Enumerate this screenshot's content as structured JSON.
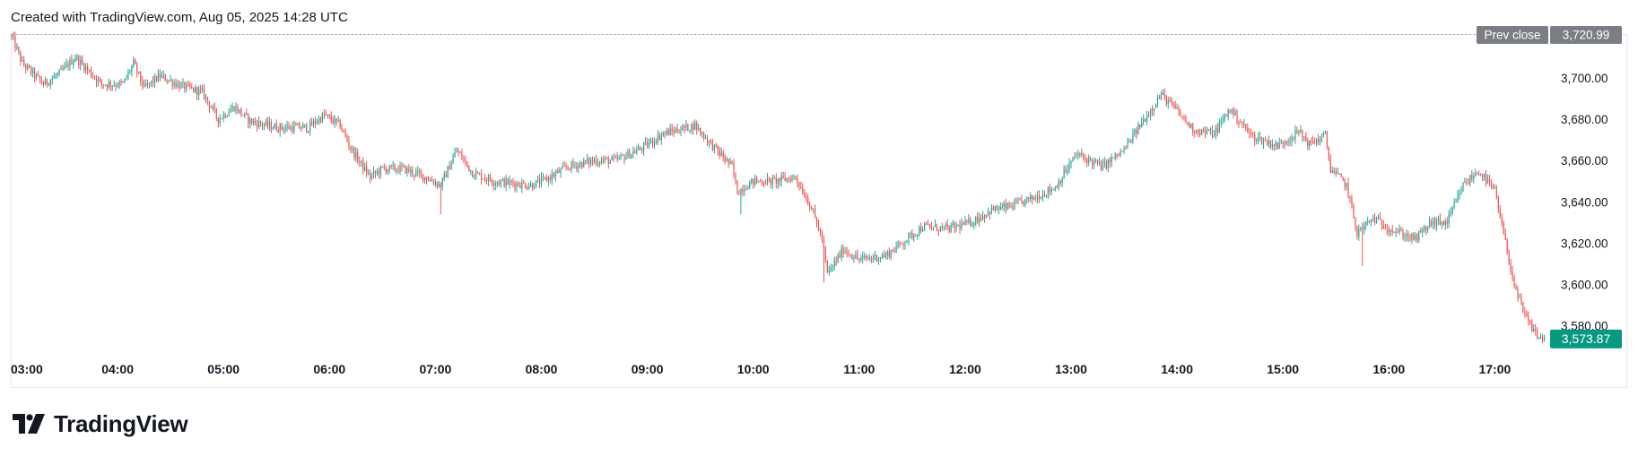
{
  "header": {
    "attribution": "Created with TradingView.com, Aug 05, 2025 14:28 UTC"
  },
  "logo": {
    "text": "TradingView",
    "icon": "tradingview-logo-icon"
  },
  "colors": {
    "up": "#26a69a",
    "down": "#ef5350",
    "text": "#131722",
    "prev_close_badge": "#7b7e85",
    "last_price_badge": "#089981",
    "dotted_line": "#9598a1"
  },
  "chart_data": {
    "type": "candlestick",
    "y_ticks": [
      "3,700.00",
      "3,680.00",
      "3,660.00",
      "3,640.00",
      "3,620.00",
      "3,600.00",
      "3,580.00"
    ],
    "y_tick_values": [
      3700,
      3680,
      3660,
      3640,
      3620,
      3600,
      3580
    ],
    "ylim": [
      3566,
      3722.5
    ],
    "x_ticks": [
      "03:00",
      "04:00",
      "05:00",
      "06:00",
      "07:00",
      "08:00",
      "09:00",
      "10:00",
      "11:00",
      "12:00",
      "13:00",
      "14:00",
      "15:00",
      "16:00",
      "17:00"
    ],
    "x_tick_hours": [
      3,
      4,
      5,
      6,
      7,
      8,
      9,
      10,
      11,
      12,
      13,
      14,
      15,
      16,
      17
    ],
    "x_range_hours": [
      3.0,
      17.48
    ],
    "prev_close": {
      "label": "Prev close",
      "value_text": "3,720.99",
      "value": 3720.99
    },
    "last_price": {
      "value_text": "3,573.87",
      "value": 3573.87
    },
    "price_path": [
      [
        3.0,
        3720
      ],
      [
        3.1,
        3707
      ],
      [
        3.3,
        3697
      ],
      [
        3.45,
        3702
      ],
      [
        3.6,
        3710
      ],
      [
        3.85,
        3697
      ],
      [
        4.05,
        3697
      ],
      [
        4.15,
        3707
      ],
      [
        4.25,
        3695
      ],
      [
        4.4,
        3701
      ],
      [
        4.6,
        3696
      ],
      [
        4.8,
        3693
      ],
      [
        4.95,
        3680
      ],
      [
        5.1,
        3686
      ],
      [
        5.25,
        3679
      ],
      [
        5.5,
        3676
      ],
      [
        5.8,
        3676
      ],
      [
        5.95,
        3682
      ],
      [
        6.1,
        3677
      ],
      [
        6.2,
        3666
      ],
      [
        6.38,
        3652
      ],
      [
        6.5,
        3656
      ],
      [
        6.7,
        3656
      ],
      [
        6.9,
        3652
      ],
      [
        7.05,
        3648
      ],
      [
        7.2,
        3665
      ],
      [
        7.35,
        3654
      ],
      [
        7.55,
        3650
      ],
      [
        7.9,
        3648
      ],
      [
        8.05,
        3651
      ],
      [
        8.25,
        3657
      ],
      [
        8.5,
        3660
      ],
      [
        8.7,
        3660
      ],
      [
        8.95,
        3666
      ],
      [
        9.15,
        3673
      ],
      [
        9.45,
        3677
      ],
      [
        9.6,
        3668
      ],
      [
        9.8,
        3657
      ],
      [
        9.85,
        3645
      ],
      [
        10.0,
        3650
      ],
      [
        10.2,
        3650
      ],
      [
        10.4,
        3652
      ],
      [
        10.55,
        3637
      ],
      [
        10.65,
        3622
      ],
      [
        10.7,
        3605
      ],
      [
        10.85,
        3617
      ],
      [
        11.0,
        3612
      ],
      [
        11.25,
        3614
      ],
      [
        11.4,
        3620
      ],
      [
        11.6,
        3628
      ],
      [
        11.85,
        3627
      ],
      [
        12.05,
        3630
      ],
      [
        12.25,
        3636
      ],
      [
        12.45,
        3638
      ],
      [
        12.65,
        3642
      ],
      [
        12.85,
        3647
      ],
      [
        13.05,
        3663
      ],
      [
        13.3,
        3657
      ],
      [
        13.5,
        3665
      ],
      [
        13.65,
        3677
      ],
      [
        13.85,
        3692
      ],
      [
        14.0,
        3684
      ],
      [
        14.15,
        3675
      ],
      [
        14.35,
        3673
      ],
      [
        14.5,
        3685
      ],
      [
        14.7,
        3672
      ],
      [
        14.95,
        3667
      ],
      [
        15.15,
        3674
      ],
      [
        15.25,
        3668
      ],
      [
        15.4,
        3672
      ],
      [
        15.45,
        3656
      ],
      [
        15.6,
        3648
      ],
      [
        15.7,
        3625
      ],
      [
        15.85,
        3632
      ],
      [
        16.05,
        3626
      ],
      [
        16.25,
        3622
      ],
      [
        16.4,
        3630
      ],
      [
        16.55,
        3630
      ],
      [
        16.7,
        3648
      ],
      [
        16.85,
        3655
      ],
      [
        17.0,
        3645
      ],
      [
        17.1,
        3620
      ],
      [
        17.2,
        3596
      ],
      [
        17.3,
        3583
      ],
      [
        17.42,
        3574
      ],
      [
        17.48,
        3573.87
      ]
    ],
    "spikes": [
      {
        "hour": 7.05,
        "low": 3634
      },
      {
        "hour": 9.88,
        "low": 3634
      },
      {
        "hour": 10.67,
        "low": 3601
      },
      {
        "hour": 15.75,
        "low": 3609
      }
    ]
  }
}
